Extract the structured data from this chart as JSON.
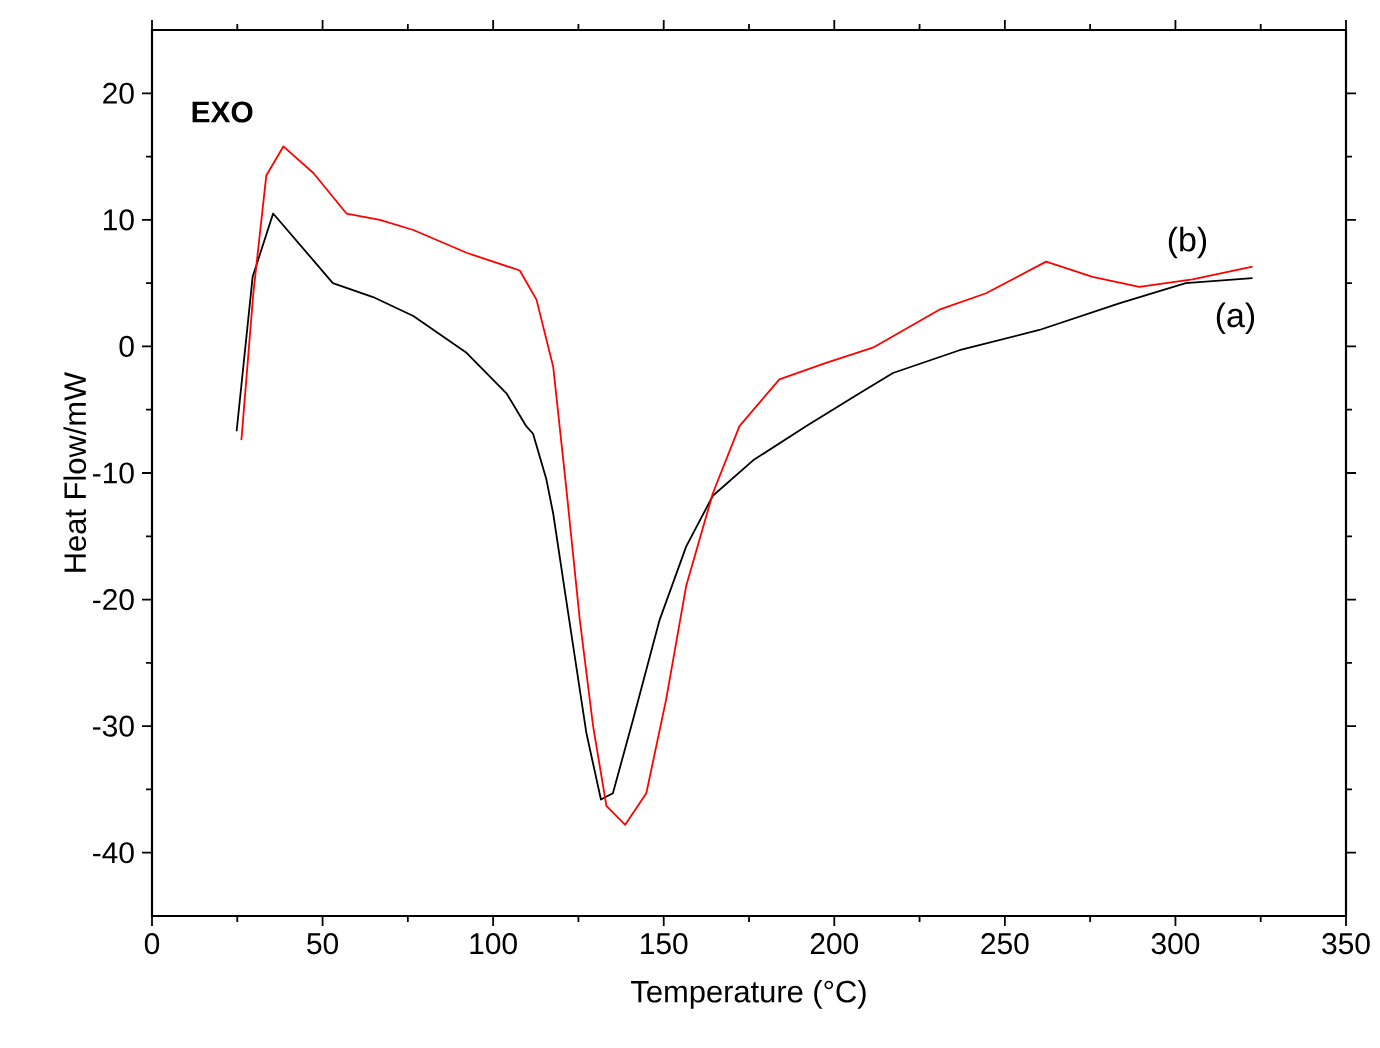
{
  "chart_data": {
    "type": "line",
    "xlabel": "Temperature (°C)",
    "ylabel": "Heat Flow/mW",
    "xlim": [
      0,
      350
    ],
    "ylim": [
      -45,
      25
    ],
    "xticks": [
      0,
      50,
      100,
      150,
      200,
      250,
      300,
      350
    ],
    "yticks": [
      -40,
      -30,
      -20,
      -10,
      0,
      10,
      20
    ],
    "annotations": [
      "EXO"
    ],
    "grid": false,
    "legend": false,
    "marker": "none",
    "line_style": "solid",
    "series": [
      {
        "name": "(a)",
        "color": "#000000",
        "x": [
          24.8,
          29.5,
          35.5,
          47.3,
          53,
          64.8,
          76.6,
          92.2,
          103.9,
          109.7,
          111.7,
          115.6,
          117.6,
          121.4,
          127.3,
          131.6,
          135.1,
          141,
          148.8,
          156.6,
          164.4,
          176.2,
          191.7,
          207.4,
          217.2,
          236.7,
          260.1,
          283.5,
          303,
          322.6
        ],
        "values": [
          -6.7,
          5.5,
          10.5,
          6.8,
          5.0,
          3.9,
          2.4,
          -0.5,
          -3.7,
          -6.3,
          -6.9,
          -10.5,
          -13.2,
          -20,
          -30.5,
          -35.8,
          -35.3,
          -29.5,
          -21.6,
          -15.8,
          -11.8,
          -9,
          -6.3,
          -3.7,
          -2.1,
          -0.3,
          1.3,
          3.4,
          5.0,
          5.4
        ]
      },
      {
        "name": "(b)",
        "color": "#ff0000",
        "x": [
          26.2,
          29.7,
          33.5,
          38.5,
          47.3,
          57,
          66.8,
          76.6,
          92.2,
          107.8,
          112.7,
          117.6,
          121.4,
          125.4,
          129.3,
          133.2,
          138.7,
          144.9,
          150.7,
          156.6,
          164.4,
          172.2,
          183.9,
          197.6,
          211.3,
          230.8,
          244.5,
          262.1,
          275.7,
          289.4,
          305,
          322.6
        ],
        "values": [
          -7.4,
          4.2,
          13.5,
          15.8,
          13.7,
          10.5,
          10,
          9.2,
          7.4,
          6.0,
          3.7,
          -1.6,
          -11.1,
          -21.6,
          -30,
          -36.3,
          -37.8,
          -35.3,
          -27.9,
          -18.9,
          -11.6,
          -6.3,
          -2.6,
          -1.3,
          -0.1,
          2.9,
          4.2,
          6.7,
          5.5,
          4.7,
          5.3,
          6.3
        ]
      }
    ]
  }
}
